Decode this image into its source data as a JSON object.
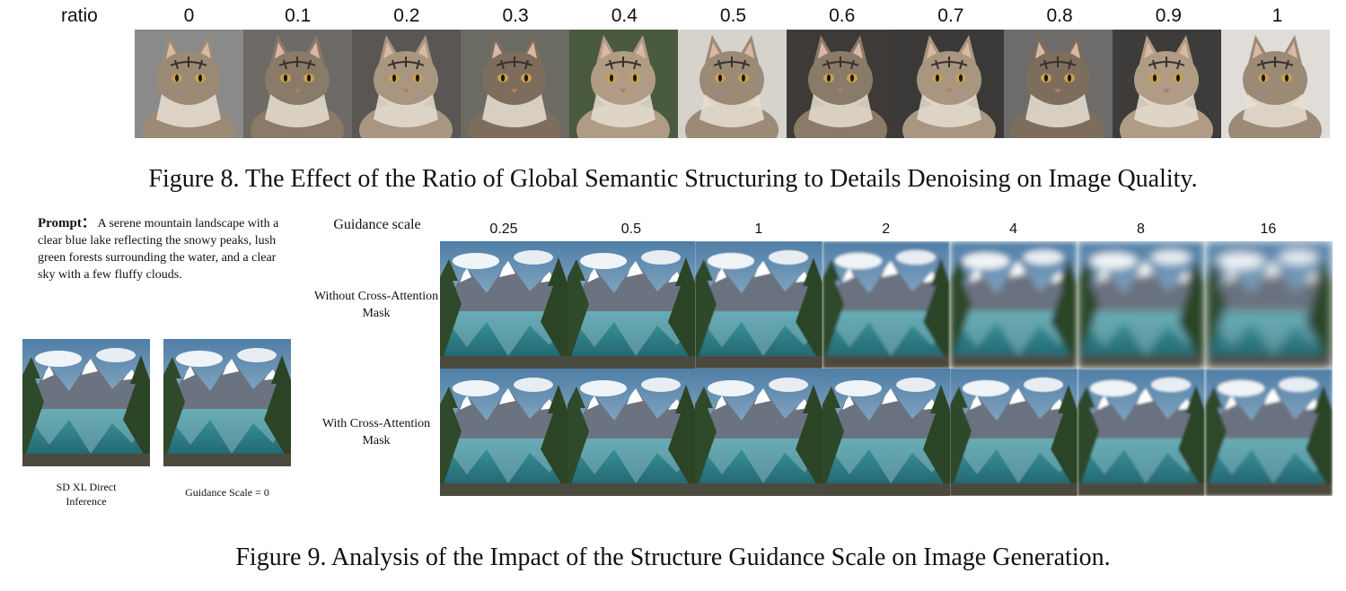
{
  "figure8": {
    "axis_label": "ratio",
    "ratios": [
      "0",
      "0.1",
      "0.2",
      "0.3",
      "0.4",
      "0.5",
      "0.6",
      "0.7",
      "0.8",
      "0.9",
      "1"
    ],
    "tile_backgrounds": [
      "#8a8a8a",
      "#6e6b66",
      "#5a5654",
      "#6b6a63",
      "#4a5a3e",
      "#d6d2cc",
      "#3d3a38",
      "#3b3937",
      "#6d6c6b",
      "#3e3c3a",
      "#e0ddd8"
    ],
    "caption": "Figure 8. The Effect of the Ratio of Global Semantic Structuring to Details Denoising on Image Quality."
  },
  "figure9": {
    "prompt_label": "Prompt：",
    "prompt_text": "A serene mountain landscape with a clear blue lake reflecting the snowy peaks, lush green forests surrounding the water, and a clear sky with a few fluffy clouds.",
    "side_caption_1": "SD XL Direct Inference",
    "side_caption_2": "Guidance Scale = 0",
    "guidance_label": "Guidance scale",
    "guidance_values": [
      "0.25",
      "0.5",
      "1",
      "2",
      "4",
      "8",
      "16"
    ],
    "row_labels": [
      "Without Cross-Attention Mask",
      "With Cross-Attention Mask"
    ],
    "caption": "Figure 9. Analysis of the Impact of the Structure Guidance Scale on Image Generation."
  }
}
